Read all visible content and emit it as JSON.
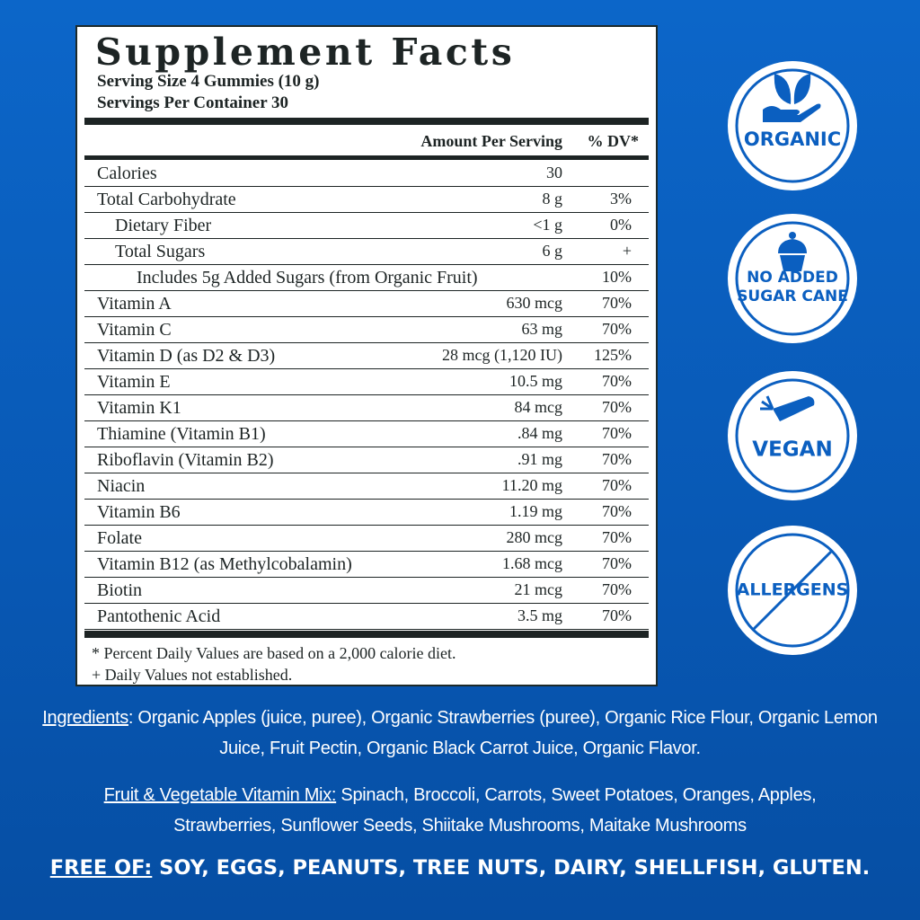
{
  "facts": {
    "title": "Supplement Facts",
    "serving_size": "Serving Size 4 Gummies (10 g)",
    "servings_per_container": "Servings Per Container 30",
    "header": {
      "amount": "Amount Per Serving",
      "dv": "% DV*"
    },
    "rows": [
      {
        "name": "Calories",
        "amount": "30"
      },
      {
        "name": "Total Carbohydrate",
        "amount": "8 g",
        "dv": "3%"
      },
      {
        "name": "Dietary Fiber",
        "amount": "<1 g",
        "dv": "0%"
      },
      {
        "name": "Total Sugars",
        "amount": "6 g",
        "dv": "+"
      },
      {
        "name": "Includes 5g Added Sugars (from Organic Fruit)",
        "dv": "10%"
      },
      {
        "name": "Vitamin A",
        "amount": "630 mcg",
        "dv": "70%"
      },
      {
        "name": "Vitamin C",
        "amount": "63 mg",
        "dv": "70%"
      },
      {
        "name": "Vitamin D (as D2 & D3)",
        "amount": "28 mcg (1,120 IU)",
        "dv": "125%"
      },
      {
        "name": "Vitamin E",
        "amount": "10.5 mg",
        "dv": "70%"
      },
      {
        "name": "Vitamin K1",
        "amount": "84 mcg",
        "dv": "70%"
      },
      {
        "name": "Thiamine (Vitamin B1)",
        "amount": ".84 mg",
        "dv": "70%"
      },
      {
        "name": "Riboflavin (Vitamin B2)",
        "amount": ".91 mg",
        "dv": "70%"
      },
      {
        "name": "Niacin",
        "amount": "11.20 mg",
        "dv": "70%"
      },
      {
        "name": "Vitamin B6",
        "amount": "1.19 mg",
        "dv": "70%"
      },
      {
        "name": "Folate",
        "amount": "280 mcg",
        "dv": "70%"
      },
      {
        "name": "Vitamin B12 (as Methylcobalamin)",
        "amount": "1.68 mcg",
        "dv": "70%"
      },
      {
        "name": "Biotin",
        "amount": "21 mcg",
        "dv": "70%"
      },
      {
        "name": "Pantothenic Acid",
        "amount": "3.5 mg",
        "dv": "70%"
      }
    ],
    "footnotes": [
      "* Percent Daily Values are based on a 2,000 calorie diet.",
      "+ Daily Values not established."
    ]
  },
  "ingredients": {
    "label": "Ingredients",
    "text": ": Organic Apples (juice, puree), Organic Strawberries (puree),  Organic Rice Flour, Organic Lemon Juice, Fruit Pectin, Organic Black Carrot Juice, Organic Flavor."
  },
  "vitamin_mix": {
    "label": "Fruit & Vegetable Vitamin Mix:",
    "text": " Spinach, Broccoli, Carrots, Sweet Potatoes, Oranges, Apples, Strawberries, Sunflower Seeds, Shiitake Mushrooms, Maitake Mushrooms"
  },
  "free_of": {
    "label": "FREE OF:",
    "text": " SOY, EGGS, PEANUTS, TREE NUTS, DAIRY, SHELLFISH, GLUTEN."
  },
  "badges": {
    "organic": "ORGANIC",
    "no_added_sugar_1": "NO ADDED",
    "no_added_sugar_2": "SUGAR CANE",
    "vegan": "VEGAN",
    "allergens": "ALLERGENS"
  }
}
